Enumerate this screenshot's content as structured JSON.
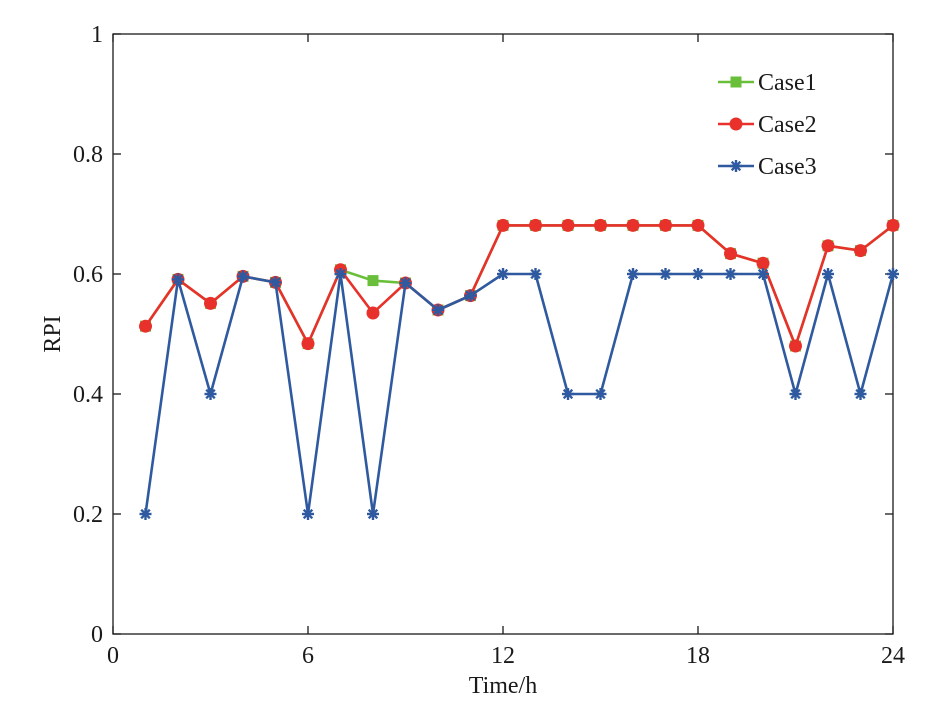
{
  "chart_data": {
    "type": "line",
    "title": "",
    "xlabel": "Time/h",
    "ylabel": "RPI",
    "xlim": [
      0,
      24
    ],
    "ylim": [
      0,
      1
    ],
    "xticks": [
      0,
      6,
      12,
      18,
      24
    ],
    "yticks": [
      0,
      0.2,
      0.4,
      0.6,
      0.8,
      1
    ],
    "xtick_labels": [
      "0",
      "6",
      "12",
      "18",
      "24"
    ],
    "ytick_labels": [
      "0",
      "0.2",
      "0.4",
      "0.6",
      "0.8",
      "1"
    ],
    "grid": false,
    "legend_position": "top-right",
    "x": [
      1,
      2,
      3,
      4,
      5,
      6,
      7,
      8,
      9,
      10,
      11,
      12,
      13,
      14,
      15,
      16,
      17,
      18,
      19,
      20,
      21,
      22,
      23,
      24
    ],
    "series": [
      {
        "name": "Case1",
        "color": "#6abf3a",
        "marker": "square",
        "values": [
          0.513,
          0.591,
          0.551,
          0.596,
          0.586,
          0.484,
          0.607,
          0.589,
          0.585,
          0.54,
          0.564,
          0.681,
          0.681,
          0.681,
          0.681,
          0.681,
          0.681,
          0.681,
          0.634,
          0.618,
          0.48,
          0.647,
          0.639,
          0.681
        ]
      },
      {
        "name": "Case2",
        "color": "#e8312a",
        "marker": "circle",
        "values": [
          0.513,
          0.591,
          0.551,
          0.596,
          0.586,
          0.484,
          0.607,
          0.535,
          0.585,
          0.54,
          0.564,
          0.681,
          0.681,
          0.681,
          0.681,
          0.681,
          0.681,
          0.681,
          0.634,
          0.618,
          0.48,
          0.647,
          0.639,
          0.681
        ]
      },
      {
        "name": "Case3",
        "color": "#2f5aa0",
        "marker": "star",
        "values": [
          0.2,
          0.591,
          0.4,
          0.596,
          0.586,
          0.2,
          0.6,
          0.2,
          0.585,
          0.54,
          0.564,
          0.6,
          0.6,
          0.4,
          0.4,
          0.6,
          0.6,
          0.6,
          0.6,
          0.6,
          0.4,
          0.6,
          0.4,
          0.6
        ]
      }
    ]
  }
}
